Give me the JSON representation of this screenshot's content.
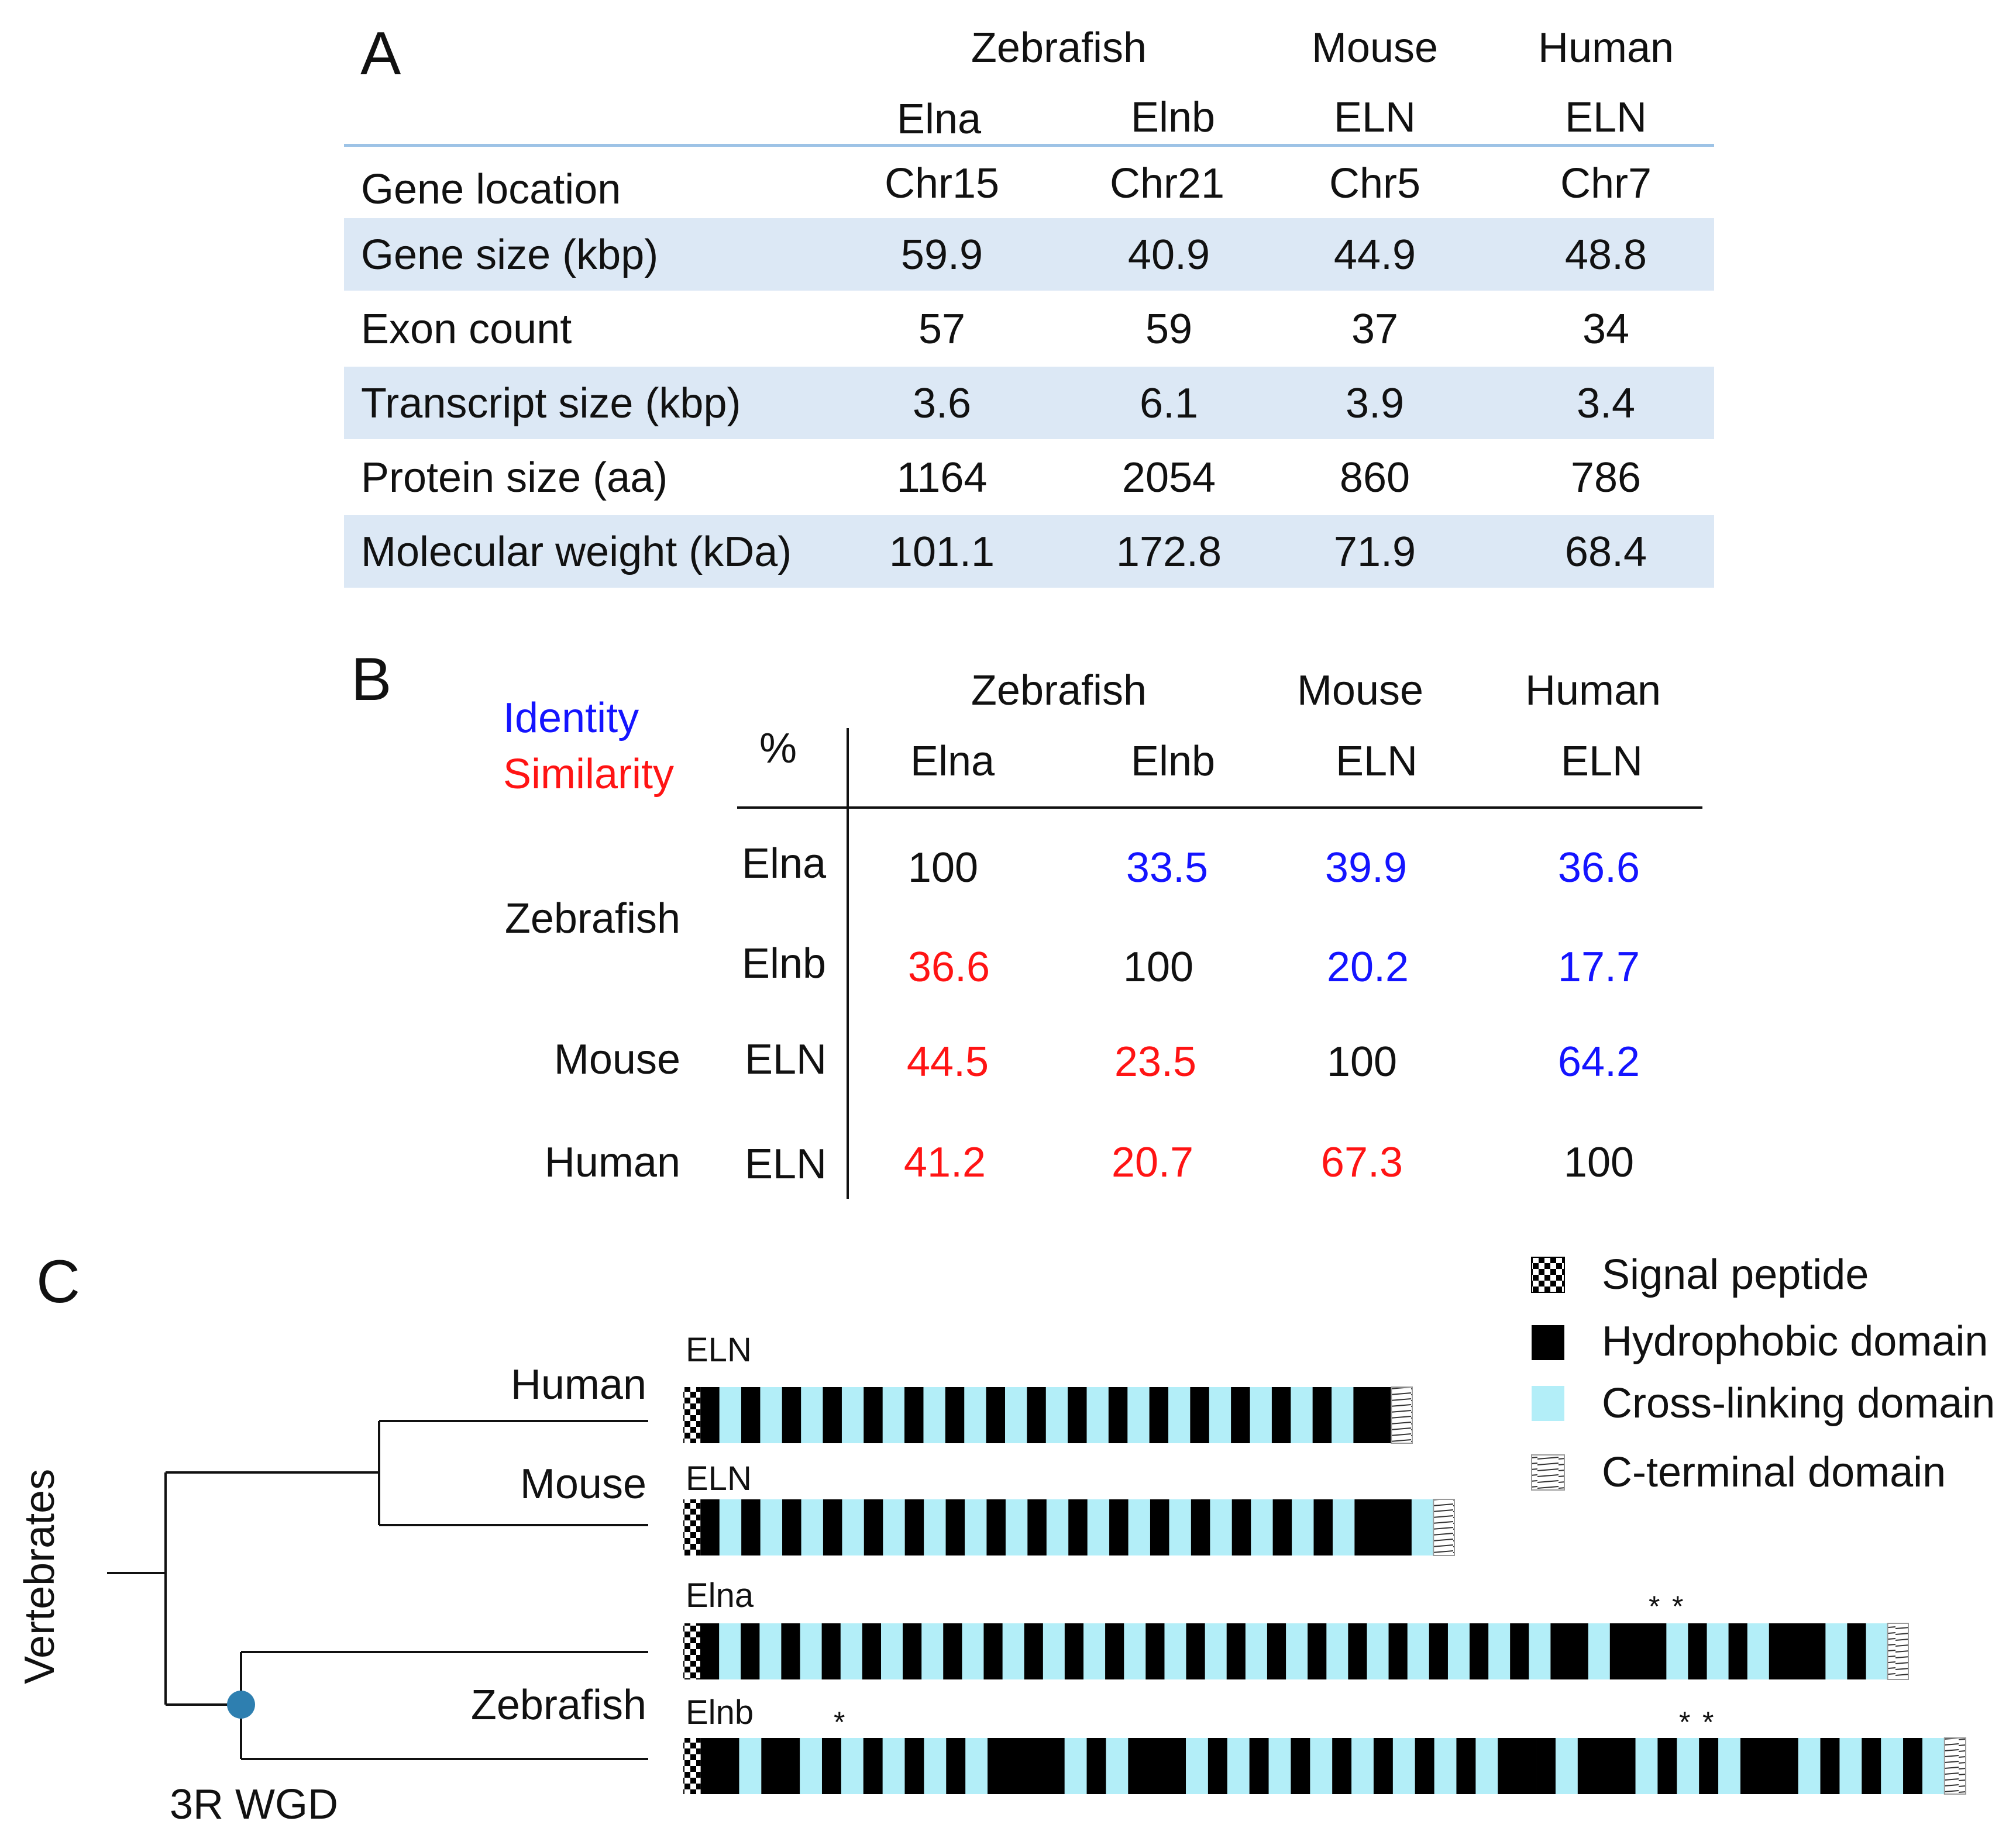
{
  "panelA": {
    "letter": "A",
    "groups": [
      "Zebrafish",
      "Mouse",
      "Human"
    ],
    "columns": [
      "Elna",
      "Elnb",
      "ELN",
      "ELN"
    ],
    "rows": [
      {
        "label": "Gene location",
        "values": [
          "Chr15",
          "Chr21",
          "Chr5",
          "Chr7"
        ],
        "shaded": false
      },
      {
        "label": "Gene size (kbp)",
        "values": [
          "59.9",
          "40.9",
          "44.9",
          "48.8"
        ],
        "shaded": true
      },
      {
        "label": "Exon count",
        "values": [
          "57",
          "59",
          "37",
          "34"
        ],
        "shaded": false
      },
      {
        "label": "Transcript size (kbp)",
        "values": [
          "3.6",
          "6.1",
          "3.9",
          "3.4"
        ],
        "shaded": true
      },
      {
        "label": "Protein size (aa)",
        "values": [
          "1164",
          "2054",
          "860",
          "786"
        ],
        "shaded": false
      },
      {
        "label": "Molecular weight (kDa)",
        "values": [
          "101.1",
          "172.8",
          "71.9",
          "68.4"
        ],
        "shaded": true
      }
    ],
    "colors": {
      "band": "#dce8f5",
      "rule": "#9dc3e6"
    }
  },
  "panelB": {
    "letter": "B",
    "legend_identity": "Identity",
    "legend_similarity": "Similarity",
    "percent": "%",
    "groups": [
      "Zebrafish",
      "Mouse",
      "Human"
    ],
    "columns": [
      "Elna",
      "Elnb",
      "ELN",
      "ELN"
    ],
    "row_species": [
      "Zebrafish",
      "Mouse",
      "Human"
    ],
    "row_genes": [
      "Elna",
      "Elnb",
      "ELN",
      "ELN"
    ],
    "matrix": [
      [
        {
          "v": "100",
          "k": "self"
        },
        {
          "v": "33.5",
          "k": "identity"
        },
        {
          "v": "39.9",
          "k": "identity"
        },
        {
          "v": "36.6",
          "k": "identity"
        }
      ],
      [
        {
          "v": "36.6",
          "k": "similarity"
        },
        {
          "v": "100",
          "k": "self"
        },
        {
          "v": "20.2",
          "k": "identity"
        },
        {
          "v": "17.7",
          "k": "identity"
        }
      ],
      [
        {
          "v": "44.5",
          "k": "similarity"
        },
        {
          "v": "23.5",
          "k": "similarity"
        },
        {
          "v": "100",
          "k": "self"
        },
        {
          "v": "64.2",
          "k": "identity"
        }
      ],
      [
        {
          "v": "41.2",
          "k": "similarity"
        },
        {
          "v": "20.7",
          "k": "similarity"
        },
        {
          "v": "67.3",
          "k": "similarity"
        },
        {
          "v": "100",
          "k": "self"
        }
      ]
    ],
    "colors": {
      "identity": "#1414ff",
      "similarity": "#ff1414"
    }
  },
  "panelC": {
    "letter": "C",
    "tree_label": "Vertebrates",
    "node_label": "3R WGD",
    "leaves": [
      "Human",
      "Mouse",
      "Zebrafish"
    ],
    "proteins": [
      {
        "name": "ELN",
        "species": "Human",
        "domains": "SHCHCHCHCHCHCHCHCHCHCHCHCHCHCHCHCHHT"
      },
      {
        "name": "ELN",
        "species": "Mouse",
        "domains": "SHCHCHCHCHCHCHCHCHCHCHCHCHCHCHCHCHHHCT"
      },
      {
        "name": "Elna",
        "species": "Zebrafish",
        "domains": "SHCHCHCHCHCHCHCHCHCHCHCHCHCHCHCHCHCHCHCHCHCHHCHHHCHCHCHHHCHCT",
        "stars": [
          "*",
          "*"
        ]
      },
      {
        "name": "Elnb",
        "species": "Zebrafish",
        "domains": "SHHCHHCHCHCHCHCHHHHCHCHHHCHCHCHCHCHCHCHCHHHCHHHCHCHCHHHCHCHCHCT",
        "stars": [
          "*",
          "*",
          "*"
        ]
      }
    ],
    "legend": [
      {
        "label": "Signal peptide",
        "icon": "signal-peptide"
      },
      {
        "label": "Hydrophobic domain",
        "icon": "hydrophobic"
      },
      {
        "label": "Cross-linking domain",
        "icon": "cross-linking"
      },
      {
        "label": "C-terminal domain",
        "icon": "c-terminal"
      }
    ],
    "colors": {
      "hydrophobic": "#000000",
      "cross_linking": "#b3eef8",
      "node": "#2e7fb0"
    }
  }
}
